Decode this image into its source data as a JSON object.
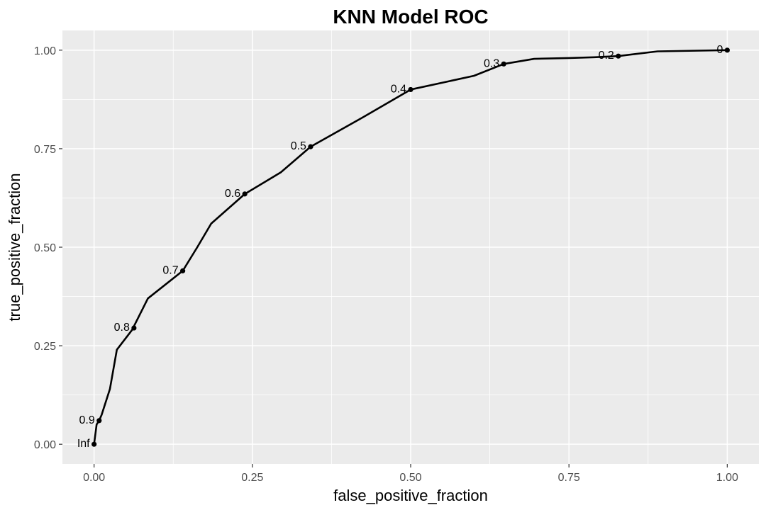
{
  "chart_data": {
    "type": "line",
    "title": "KNN Model ROC",
    "xlabel": "false_positive_fraction",
    "ylabel": "true_positive_fraction",
    "xlim": [
      -0.05,
      1.05
    ],
    "ylim": [
      -0.05,
      1.05
    ],
    "x_ticks": [
      0,
      0.25,
      0.5,
      0.75,
      1
    ],
    "x_tick_labels": [
      "0.00",
      "0.25",
      "0.50",
      "0.75",
      "1.00"
    ],
    "y_ticks": [
      0,
      0.25,
      0.5,
      0.75,
      1
    ],
    "y_tick_labels": [
      "0.00",
      "0.25",
      "0.50",
      "0.75",
      "1.00"
    ],
    "grid": true,
    "background_color": "#ebebeb",
    "grid_color": "#ffffff",
    "line_color": "#000000",
    "series": [
      {
        "x": [
          0.0,
          0.004,
          0.008,
          0.012,
          0.025,
          0.036,
          0.06,
          0.085,
          0.14,
          0.163,
          0.185,
          0.238,
          0.295,
          0.342,
          0.425,
          0.5,
          0.6,
          0.647,
          0.695,
          0.75,
          0.79,
          0.828,
          0.89,
          1.0
        ],
        "y": [
          0.0,
          0.05,
          0.06,
          0.075,
          0.14,
          0.24,
          0.29,
          0.37,
          0.44,
          0.5,
          0.56,
          0.635,
          0.69,
          0.755,
          0.83,
          0.9,
          0.935,
          0.965,
          0.978,
          0.98,
          0.982,
          0.985,
          0.997,
          1.0
        ]
      }
    ],
    "cutoffs": [
      {
        "label": "Inf",
        "x": 0.0,
        "y": 0.0
      },
      {
        "label": "0.9",
        "x": 0.008,
        "y": 0.06
      },
      {
        "label": "0.8",
        "x": 0.063,
        "y": 0.295
      },
      {
        "label": "0.7",
        "x": 0.14,
        "y": 0.44
      },
      {
        "label": "0.6",
        "x": 0.238,
        "y": 0.635
      },
      {
        "label": "0.5",
        "x": 0.342,
        "y": 0.755
      },
      {
        "label": "0.4",
        "x": 0.5,
        "y": 0.9
      },
      {
        "label": "0.3",
        "x": 0.647,
        "y": 0.965
      },
      {
        "label": "0.2",
        "x": 0.828,
        "y": 0.985
      },
      {
        "label": "0",
        "x": 1.0,
        "y": 1.0
      }
    ]
  }
}
